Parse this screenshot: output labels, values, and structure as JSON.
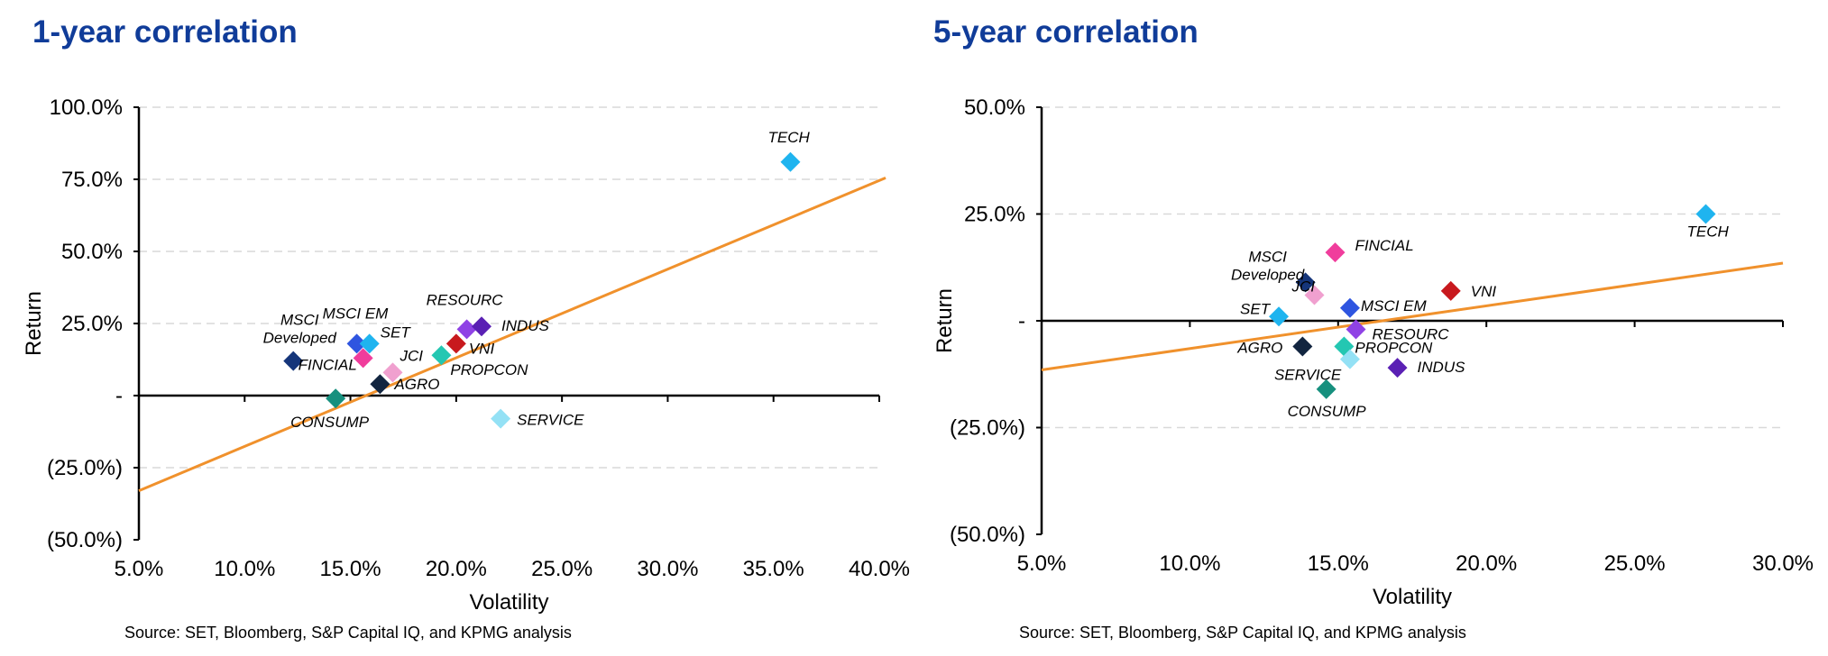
{
  "source_note": "Source: SET, Bloomberg, S&P Capital IQ, and KPMG analysis",
  "colors": {
    "title": "#103C99",
    "trendline": "#F0912C",
    "TECH": "#1FB4EF",
    "MSCI Developed": "#15357A",
    "FINCIAL": "#F03D9C",
    "MSCI EM": "#2F55E0",
    "SET": "#1FB4EF",
    "JCI": "#F0A0CF",
    "VNI": "#C8191E",
    "RESOURC": "#8F42E5",
    "INDUS": "#5A20B4",
    "PROPCON": "#24C7B2",
    "AGRO": "#122540",
    "SERVICE": "#94E1F5",
    "CONSUMP": "#16907E"
  },
  "chart_data": [
    {
      "type": "scatter",
      "title": "1-year correlation",
      "xlabel": "Volatility",
      "ylabel": "Return",
      "xlim": [
        5,
        40
      ],
      "ylim": [
        -50,
        100
      ],
      "x_ticks": [
        "5.0%",
        "10.0%",
        "15.0%",
        "20.0%",
        "25.0%",
        "30.0%",
        "35.0%",
        "40.0%"
      ],
      "y_ticks": [
        "100.0%",
        "75.0%",
        "50.0%",
        "25.0%",
        "-",
        "(25.0%)",
        "(50.0%)"
      ],
      "grid": "horizontal dashed",
      "trendline": {
        "x": [
          5,
          40.3
        ],
        "y": [
          -33,
          75.5
        ]
      },
      "points": [
        {
          "label": "TECH",
          "x": 35.8,
          "y": 81
        },
        {
          "label": "MSCI Developed",
          "x": 12.3,
          "y": 12
        },
        {
          "label": "FINCIAL",
          "x": 15.6,
          "y": 13
        },
        {
          "label": "MSCI EM",
          "x": 15.3,
          "y": 18
        },
        {
          "label": "SET",
          "x": 15.9,
          "y": 18
        },
        {
          "label": "JCI",
          "x": 17.0,
          "y": 8
        },
        {
          "label": "VNI",
          "x": 20.0,
          "y": 18
        },
        {
          "label": "RESOURC",
          "x": 20.5,
          "y": 23
        },
        {
          "label": "INDUS",
          "x": 21.2,
          "y": 24
        },
        {
          "label": "PROPCON",
          "x": 19.3,
          "y": 14
        },
        {
          "label": "AGRO",
          "x": 16.4,
          "y": 4
        },
        {
          "label": "CONSUMP",
          "x": 14.3,
          "y": -1
        },
        {
          "label": "SERVICE",
          "x": 22.1,
          "y": -8
        }
      ]
    },
    {
      "type": "scatter",
      "title": "5-year correlation",
      "xlabel": "Volatility",
      "ylabel": "Return",
      "xlim": [
        5,
        30
      ],
      "ylim": [
        -50,
        50
      ],
      "x_ticks": [
        "5.0%",
        "10.0%",
        "15.0%",
        "20.0%",
        "25.0%",
        "30.0%"
      ],
      "y_ticks": [
        "50.0%",
        "25.0%",
        "-",
        "(25.0%)",
        "(50.0%)"
      ],
      "grid": "horizontal dashed",
      "trendline": {
        "x": [
          5,
          30
        ],
        "y": [
          -11.5,
          13.5
        ]
      },
      "points": [
        {
          "label": "TECH",
          "x": 27.4,
          "y": 25
        },
        {
          "label": "MSCI Developed",
          "x": 13.9,
          "y": 9
        },
        {
          "label": "FINCIAL",
          "x": 14.9,
          "y": 16
        },
        {
          "label": "JCI",
          "x": 14.2,
          "y": 6
        },
        {
          "label": "MSCI EM",
          "x": 15.4,
          "y": 3
        },
        {
          "label": "VNI",
          "x": 18.8,
          "y": 7
        },
        {
          "label": "SET",
          "x": 13.0,
          "y": 1
        },
        {
          "label": "RESOURC",
          "x": 15.6,
          "y": -2
        },
        {
          "label": "AGRO",
          "x": 13.8,
          "y": -6
        },
        {
          "label": "PROPCON",
          "x": 15.2,
          "y": -6
        },
        {
          "label": "SERVICE",
          "x": 15.4,
          "y": -9
        },
        {
          "label": "INDUS",
          "x": 17.0,
          "y": -11
        },
        {
          "label": "CONSUMP",
          "x": 14.6,
          "y": -16
        }
      ]
    }
  ]
}
